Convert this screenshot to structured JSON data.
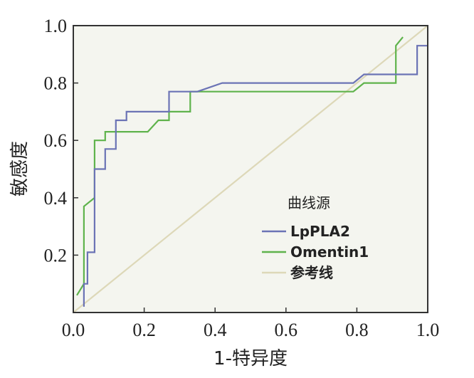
{
  "chart_data": {
    "type": "line",
    "title": "",
    "xlabel": "1-特异度",
    "ylabel": "敏感度",
    "xlim": [
      0,
      1
    ],
    "ylim": [
      0,
      1
    ],
    "x_ticks": [
      "0.0",
      "0.2",
      "0.4",
      "0.6",
      "0.8",
      "1.0"
    ],
    "y_ticks": [
      "0.2",
      "0.4",
      "0.6",
      "0.8",
      "1.0"
    ],
    "grid": false,
    "legend_title": "曲线源",
    "legend_position": "bottom-right",
    "colors": {
      "background": "#f4f5ef",
      "LpPLA2": "#6b73b5",
      "Omentin1": "#5fb34c",
      "参考线": "#ddd8b8"
    },
    "series": [
      {
        "name": "LpPLA2",
        "x": [
          0.03,
          0.03,
          0.04,
          0.04,
          0.06,
          0.06,
          0.09,
          0.09,
          0.12,
          0.12,
          0.15,
          0.15,
          0.27,
          0.27,
          0.35,
          0.42,
          0.79,
          0.82,
          0.91,
          0.97,
          0.97,
          1.0
        ],
        "y": [
          0.02,
          0.1,
          0.1,
          0.21,
          0.21,
          0.5,
          0.5,
          0.57,
          0.57,
          0.67,
          0.67,
          0.7,
          0.7,
          0.77,
          0.77,
          0.8,
          0.8,
          0.83,
          0.83,
          0.83,
          0.93,
          0.93
        ]
      },
      {
        "name": "Omentin1",
        "x": [
          0.01,
          0.03,
          0.03,
          0.06,
          0.06,
          0.09,
          0.09,
          0.21,
          0.24,
          0.24,
          0.27,
          0.27,
          0.33,
          0.33,
          0.79,
          0.82,
          0.91,
          0.91,
          0.93
        ],
        "y": [
          0.06,
          0.1,
          0.37,
          0.4,
          0.6,
          0.6,
          0.63,
          0.63,
          0.67,
          0.67,
          0.67,
          0.7,
          0.7,
          0.77,
          0.77,
          0.8,
          0.8,
          0.93,
          0.96
        ]
      },
      {
        "name": "参考线",
        "x": [
          0,
          1
        ],
        "y": [
          0,
          1
        ]
      }
    ]
  }
}
